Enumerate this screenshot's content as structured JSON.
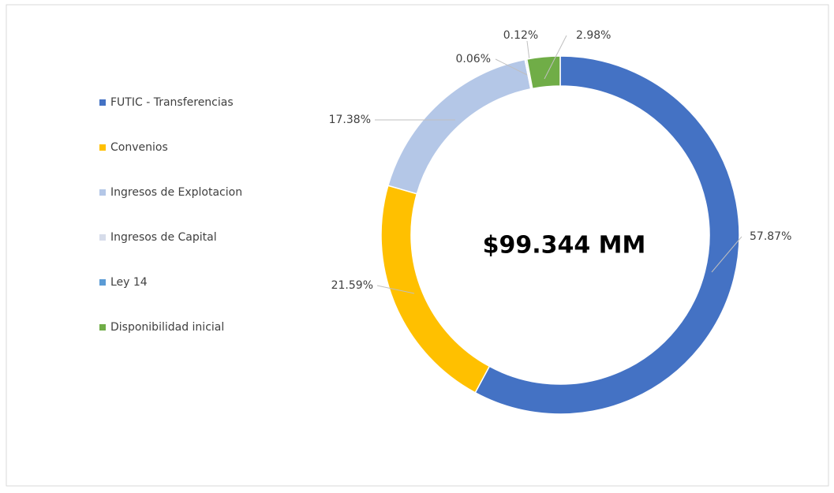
{
  "chart_data": {
    "type": "donut",
    "annotation": "$99.344 MM",
    "categories": [
      "FUTIC - Transferencias",
      "Convenios",
      "Ingresos de Explotacion",
      "Ingresos de Capital",
      "Ley 14",
      "Disponibilidad inicial"
    ],
    "values": [
      57.87,
      21.59,
      17.38,
      0.06,
      0.12,
      2.98
    ],
    "value_labels": [
      "57.87%",
      "21.59%",
      "17.38%",
      "0.06%",
      "0.12%",
      "2.98%"
    ],
    "colors": [
      "#4472c4",
      "#ffc000",
      "#b4c7e7",
      "#d6dcea",
      "#5b9bd5",
      "#70ad47"
    ],
    "legend": "left"
  }
}
